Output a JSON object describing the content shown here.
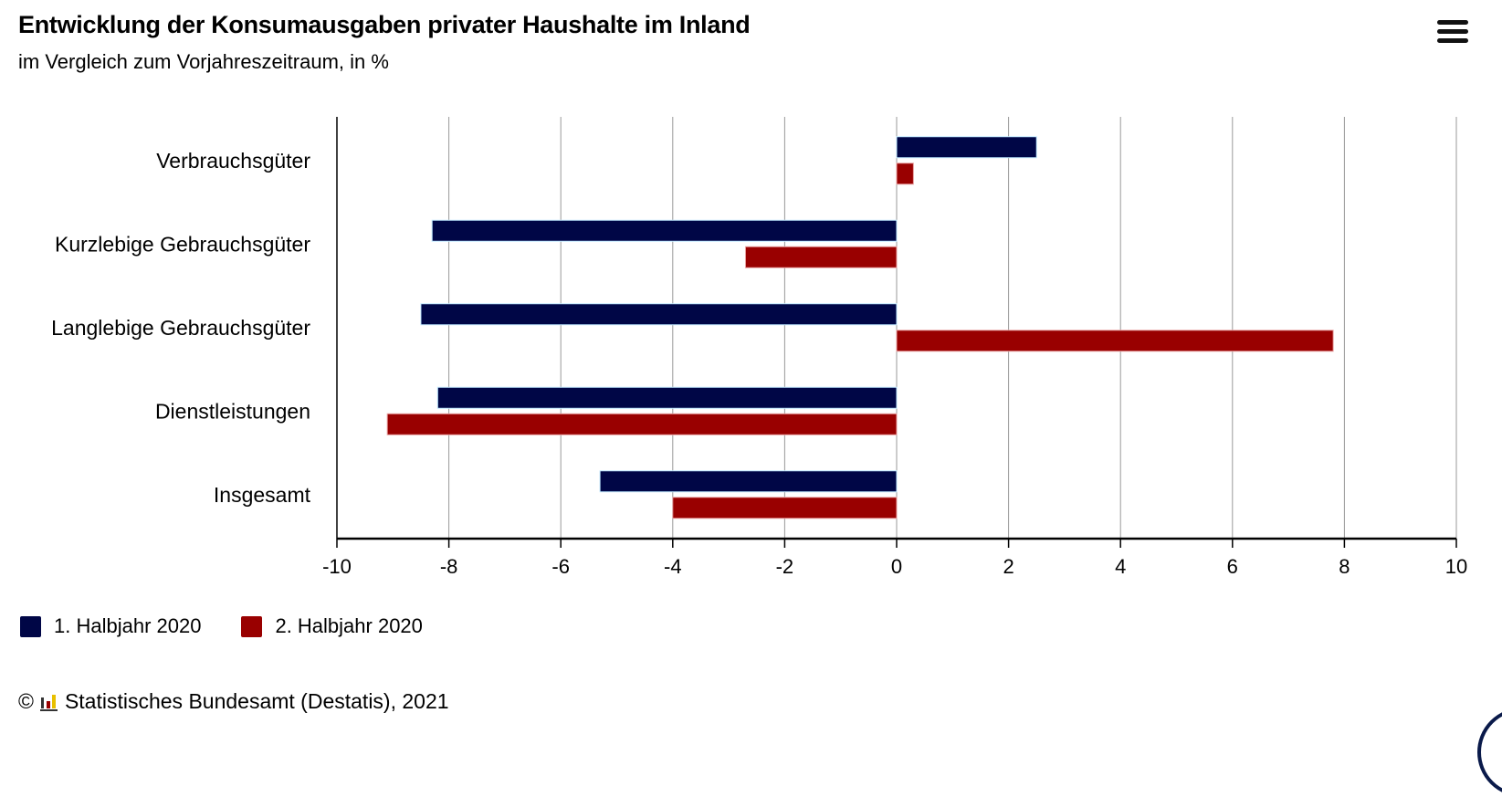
{
  "header": {
    "title": "Entwicklung der Konsumausgaben privater Haushalte im Inland",
    "subtitle": "im Vergleich zum Vorjahreszeitraum, in %",
    "menu_icon": "hamburger-menu-icon"
  },
  "chart_data": {
    "type": "bar",
    "orientation": "horizontal",
    "title": "Entwicklung der Konsumausgaben privater Haushalte im Inland",
    "subtitle": "im Vergleich zum Vorjahreszeitraum, in %",
    "categories": [
      "Verbrauchsgüter",
      "Kurzlebige Gebrauchsgüter",
      "Langlebige Gebrauchsgüter",
      "Dienstleistungen",
      "Insgesamt"
    ],
    "series": [
      {
        "name": "1. Halbjahr 2020",
        "color": "#000646",
        "values": [
          2.5,
          -8.3,
          -8.5,
          -8.2,
          -5.3
        ]
      },
      {
        "name": "2. Halbjahr 2020",
        "color": "#990000",
        "values": [
          0.3,
          -2.7,
          7.8,
          -9.1,
          -4.0
        ]
      }
    ],
    "xlim": [
      -10,
      10
    ],
    "xticks": [
      "-10",
      "-8",
      "-6",
      "-4",
      "-2",
      "0",
      "2",
      "4",
      "6",
      "8",
      "10"
    ],
    "grid": true,
    "legend_position": "bottom-left"
  },
  "footer": {
    "copyright": "©",
    "credit": "Statistisches Bundesamt (Destatis), 2021"
  }
}
